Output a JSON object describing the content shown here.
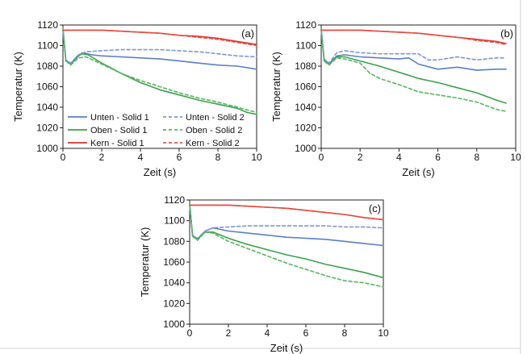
{
  "chart_data": [
    {
      "type": "line",
      "panel_label": "(a)",
      "xlabel": "Zeit (s)",
      "ylabel": "Temperatur (K)",
      "xlim": [
        0,
        10
      ],
      "ylim": [
        1000,
        1120
      ],
      "xticks": [
        0,
        2,
        4,
        6,
        8,
        10
      ],
      "yticks": [
        1000,
        1020,
        1040,
        1060,
        1080,
        1100,
        1120
      ],
      "legend_position": "lower-left",
      "series": [
        {
          "name": "Unten - Solid 1",
          "color": "#5a7fc7",
          "dashed": false,
          "points": [
            [
              0,
              1115
            ],
            [
              0.15,
              1086
            ],
            [
              0.4,
              1082
            ],
            [
              0.7,
              1088
            ],
            [
              1.0,
              1093
            ],
            [
              1.5,
              1091
            ],
            [
              2,
              1090
            ],
            [
              3,
              1089
            ],
            [
              4,
              1088
            ],
            [
              5,
              1087
            ],
            [
              6,
              1085
            ],
            [
              7,
              1083
            ],
            [
              8,
              1081
            ],
            [
              9,
              1080
            ],
            [
              10,
              1077
            ]
          ]
        },
        {
          "name": "Oben - Solid 1",
          "color": "#3aa34a",
          "dashed": false,
          "points": [
            [
              0,
              1117
            ],
            [
              0.15,
              1085
            ],
            [
              0.4,
              1082
            ],
            [
              0.7,
              1089
            ],
            [
              1.0,
              1092
            ],
            [
              1.3,
              1091
            ],
            [
              2,
              1083
            ],
            [
              2.5,
              1078
            ],
            [
              3,
              1073
            ],
            [
              4,
              1064
            ],
            [
              5,
              1057
            ],
            [
              6,
              1052
            ],
            [
              7,
              1047
            ],
            [
              8,
              1043
            ],
            [
              9,
              1039
            ],
            [
              9.5,
              1035
            ],
            [
              10,
              1033
            ]
          ]
        },
        {
          "name": "Kern - Solid 1",
          "color": "#e0322a",
          "dashed": false,
          "points": [
            [
              0,
              1115
            ],
            [
              1,
              1115
            ],
            [
              2,
              1115
            ],
            [
              3,
              1114
            ],
            [
              4,
              1113
            ],
            [
              5,
              1112
            ],
            [
              6,
              1110
            ],
            [
              7,
              1109
            ],
            [
              8,
              1107
            ],
            [
              9,
              1104
            ],
            [
              10,
              1101
            ]
          ]
        },
        {
          "name": "Unten - Solid 2",
          "color": "#7d96d6",
          "dashed": true,
          "points": [
            [
              0,
              1115
            ],
            [
              0.15,
              1086
            ],
            [
              0.4,
              1083
            ],
            [
              0.8,
              1091
            ],
            [
              1.2,
              1094
            ],
            [
              2,
              1095
            ],
            [
              3,
              1096
            ],
            [
              4,
              1096
            ],
            [
              5,
              1096
            ],
            [
              6,
              1095
            ],
            [
              7,
              1094
            ],
            [
              8,
              1092
            ],
            [
              9,
              1090
            ],
            [
              10,
              1089
            ]
          ]
        },
        {
          "name": "Oben - Solid 2",
          "color": "#57b661",
          "dashed": true,
          "points": [
            [
              0,
              1117
            ],
            [
              0.15,
              1085
            ],
            [
              0.4,
              1081
            ],
            [
              0.8,
              1088
            ],
            [
              1.2,
              1089
            ],
            [
              2,
              1082
            ],
            [
              3,
              1073
            ],
            [
              4,
              1066
            ],
            [
              5,
              1060
            ],
            [
              6,
              1054
            ],
            [
              7,
              1049
            ],
            [
              8,
              1045
            ],
            [
              9,
              1040
            ],
            [
              10,
              1035
            ]
          ]
        },
        {
          "name": "Kern - Solid 2",
          "color": "#e8544a",
          "dashed": true,
          "points": [
            [
              0,
              1115
            ],
            [
              1,
              1115
            ],
            [
              2,
              1115
            ],
            [
              3,
              1114
            ],
            [
              4,
              1113
            ],
            [
              5,
              1112
            ],
            [
              6,
              1110
            ],
            [
              7,
              1108
            ],
            [
              8,
              1106
            ],
            [
              9,
              1103
            ],
            [
              10,
              1100
            ]
          ]
        }
      ]
    },
    {
      "type": "line",
      "panel_label": "(b)",
      "xlabel": "Zeit (s)",
      "ylabel": "Temperatur (K)",
      "xlim": [
        0,
        10
      ],
      "ylim": [
        1000,
        1120
      ],
      "xticks": [
        0,
        2,
        4,
        6,
        8,
        10
      ],
      "yticks": [
        1000,
        1020,
        1040,
        1060,
        1080,
        1100,
        1120
      ],
      "series": [
        {
          "color": "#5a7fc7",
          "dashed": false,
          "points": [
            [
              0,
              1115
            ],
            [
              0.15,
              1087
            ],
            [
              0.4,
              1082
            ],
            [
              0.8,
              1090
            ],
            [
              1.2,
              1091
            ],
            [
              2,
              1089
            ],
            [
              3,
              1088
            ],
            [
              4,
              1087
            ],
            [
              4.5,
              1088
            ],
            [
              5,
              1082
            ],
            [
              6,
              1077
            ],
            [
              7,
              1079
            ],
            [
              8,
              1076
            ],
            [
              9,
              1077
            ],
            [
              9.5,
              1077
            ]
          ]
        },
        {
          "color": "#3aa34a",
          "dashed": false,
          "points": [
            [
              0,
              1117
            ],
            [
              0.15,
              1085
            ],
            [
              0.4,
              1082
            ],
            [
              0.8,
              1089
            ],
            [
              1.2,
              1089
            ],
            [
              2,
              1085
            ],
            [
              3,
              1080
            ],
            [
              4,
              1074
            ],
            [
              5,
              1068
            ],
            [
              6,
              1064
            ],
            [
              7,
              1059
            ],
            [
              8,
              1054
            ],
            [
              9,
              1047
            ],
            [
              9.5,
              1044
            ]
          ]
        },
        {
          "color": "#e0322a",
          "dashed": false,
          "points": [
            [
              0,
              1115
            ],
            [
              1,
              1115
            ],
            [
              2,
              1115
            ],
            [
              3,
              1114
            ],
            [
              4,
              1113
            ],
            [
              5,
              1112
            ],
            [
              6,
              1110
            ],
            [
              7,
              1108
            ],
            [
              8,
              1106
            ],
            [
              9,
              1104
            ],
            [
              9.5,
              1102
            ]
          ]
        },
        {
          "color": "#7d96d6",
          "dashed": true,
          "points": [
            [
              0,
              1115
            ],
            [
              0.15,
              1087
            ],
            [
              0.4,
              1083
            ],
            [
              0.8,
              1093
            ],
            [
              1.2,
              1095
            ],
            [
              2,
              1093
            ],
            [
              3,
              1092
            ],
            [
              4,
              1092
            ],
            [
              5,
              1092
            ],
            [
              5.5,
              1086
            ],
            [
              6,
              1086
            ],
            [
              7,
              1089
            ],
            [
              8,
              1086
            ],
            [
              9,
              1088
            ],
            [
              9.5,
              1088
            ]
          ]
        },
        {
          "color": "#57b661",
          "dashed": true,
          "points": [
            [
              0,
              1117
            ],
            [
              0.15,
              1085
            ],
            [
              0.4,
              1081
            ],
            [
              0.8,
              1088
            ],
            [
              1.2,
              1087
            ],
            [
              2,
              1083
            ],
            [
              2.5,
              1073
            ],
            [
              3,
              1068
            ],
            [
              4,
              1062
            ],
            [
              5,
              1055
            ],
            [
              6,
              1052
            ],
            [
              7,
              1049
            ],
            [
              8,
              1045
            ],
            [
              9,
              1038
            ],
            [
              9.5,
              1036
            ]
          ]
        },
        {
          "color": "#e8544a",
          "dashed": true,
          "points": [
            [
              0,
              1115
            ],
            [
              1,
              1115
            ],
            [
              2,
              1115
            ],
            [
              3,
              1114
            ],
            [
              4,
              1113
            ],
            [
              5,
              1112
            ],
            [
              6,
              1110
            ],
            [
              7,
              1108
            ],
            [
              8,
              1105
            ],
            [
              9,
              1103
            ],
            [
              9.5,
              1101
            ]
          ]
        }
      ]
    },
    {
      "type": "line",
      "panel_label": "(c)",
      "xlabel": "Zeit (s)",
      "ylabel": "Temperatur (K)",
      "xlim": [
        0,
        10
      ],
      "ylim": [
        1000,
        1120
      ],
      "xticks": [
        0,
        2,
        4,
        6,
        8,
        10
      ],
      "yticks": [
        1000,
        1020,
        1040,
        1060,
        1080,
        1100,
        1120
      ],
      "series": [
        {
          "color": "#5a7fc7",
          "dashed": false,
          "points": [
            [
              0,
              1115
            ],
            [
              0.15,
              1086
            ],
            [
              0.4,
              1082
            ],
            [
              0.8,
              1090
            ],
            [
              1.2,
              1093
            ],
            [
              2,
              1090
            ],
            [
              3,
              1088
            ],
            [
              4,
              1086
            ],
            [
              5,
              1084
            ],
            [
              6,
              1083
            ],
            [
              7,
              1082
            ],
            [
              8,
              1080
            ],
            [
              9,
              1078
            ],
            [
              10,
              1076
            ]
          ]
        },
        {
          "color": "#3aa34a",
          "dashed": false,
          "points": [
            [
              0,
              1117
            ],
            [
              0.15,
              1085
            ],
            [
              0.4,
              1082
            ],
            [
              0.8,
              1089
            ],
            [
              1.2,
              1089
            ],
            [
              2,
              1083
            ],
            [
              3,
              1077
            ],
            [
              4,
              1072
            ],
            [
              5,
              1067
            ],
            [
              6,
              1063
            ],
            [
              7,
              1058
            ],
            [
              8,
              1054
            ],
            [
              9,
              1050
            ],
            [
              10,
              1045
            ]
          ]
        },
        {
          "color": "#e0322a",
          "dashed": false,
          "points": [
            [
              0,
              1115
            ],
            [
              1,
              1115
            ],
            [
              2,
              1115
            ],
            [
              3,
              1114
            ],
            [
              4,
              1113
            ],
            [
              5,
              1112
            ],
            [
              6,
              1110
            ],
            [
              7,
              1108
            ],
            [
              8,
              1106
            ],
            [
              9,
              1103
            ],
            [
              10,
              1101
            ]
          ]
        },
        {
          "color": "#7d96d6",
          "dashed": true,
          "points": [
            [
              0,
              1115
            ],
            [
              0.15,
              1086
            ],
            [
              0.4,
              1083
            ],
            [
              0.8,
              1090
            ],
            [
              1.2,
              1093
            ],
            [
              2,
              1094
            ],
            [
              3,
              1095
            ],
            [
              4,
              1095
            ],
            [
              5,
              1095
            ],
            [
              6,
              1095
            ],
            [
              7,
              1095
            ],
            [
              8,
              1094
            ],
            [
              9,
              1094
            ],
            [
              10,
              1093
            ]
          ]
        },
        {
          "color": "#57b661",
          "dashed": true,
          "points": [
            [
              0,
              1117
            ],
            [
              0.15,
              1085
            ],
            [
              0.4,
              1081
            ],
            [
              0.8,
              1089
            ],
            [
              1.2,
              1088
            ],
            [
              2,
              1080
            ],
            [
              3,
              1073
            ],
            [
              4,
              1066
            ],
            [
              5,
              1059
            ],
            [
              6,
              1053
            ],
            [
              7,
              1047
            ],
            [
              8,
              1042
            ],
            [
              9,
              1040
            ],
            [
              10,
              1036
            ]
          ]
        },
        {
          "color": "#e8544a",
          "dashed": true,
          "points": [
            [
              0,
              1115
            ],
            [
              1,
              1115
            ],
            [
              2,
              1115
            ],
            [
              3,
              1114
            ],
            [
              4,
              1113
            ],
            [
              5,
              1112
            ],
            [
              6,
              1110
            ],
            [
              7,
              1108
            ],
            [
              8,
              1106
            ],
            [
              9,
              1103
            ],
            [
              10,
              1101
            ]
          ]
        }
      ]
    }
  ]
}
